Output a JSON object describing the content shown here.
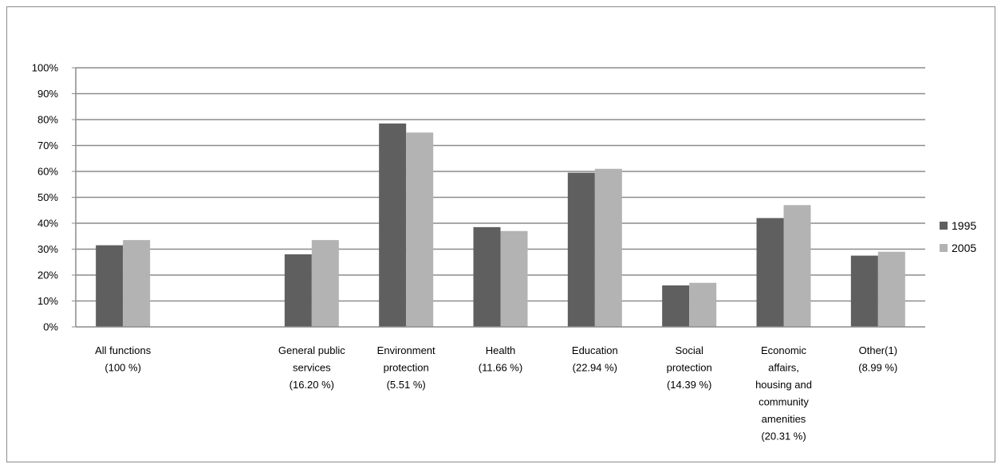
{
  "colors": {
    "series_1995": "#5f5f5f",
    "series_2005": "#b3b3b3",
    "grid": "#8c8c8c",
    "axis": "#8c8c8c"
  },
  "chart_data": {
    "type": "bar",
    "ylim": [
      0,
      100
    ],
    "y_unit": "%",
    "yticks": [
      "0%",
      "10%",
      "20%",
      "30%",
      "40%",
      "50%",
      "60%",
      "70%",
      "80%",
      "90%",
      "100%"
    ],
    "grid": true,
    "legend_position": "right",
    "categories": [
      "All functions\n(100 %)",
      "",
      "General public\nservices\n(16.20 %)",
      "Environment\nprotection\n(5.51 %)",
      "Health\n(11.66 %)",
      "Education\n(22.94 %)",
      "Social\nprotection\n(14.39 %)",
      "Economic\naffairs,\nhousing and\ncommunity\namenities\n(20.31 %)",
      "Other(1)\n(8.99 %)"
    ],
    "series": [
      {
        "name": "1995",
        "values": [
          31.5,
          null,
          28,
          78.5,
          38.5,
          59.5,
          16,
          42,
          27.5
        ]
      },
      {
        "name": "2005",
        "values": [
          33.5,
          null,
          33.5,
          75,
          37,
          61,
          17,
          47,
          29
        ]
      }
    ]
  }
}
